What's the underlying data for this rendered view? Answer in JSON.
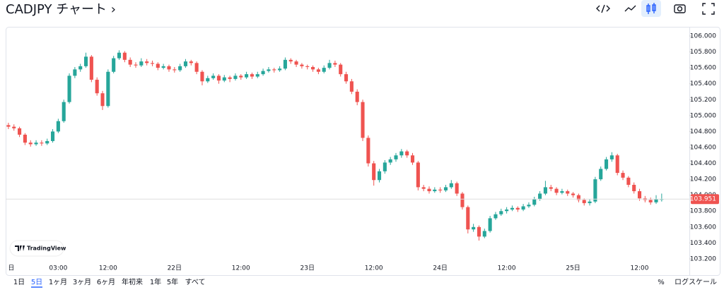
{
  "header": {
    "title": "CADJPY チャート ›"
  },
  "watermark": "TradingView",
  "ranges": [
    "1日",
    "5日",
    "1ヶ月",
    "3ヶ月",
    "6ヶ月",
    "年初来",
    "1年",
    "5年",
    "すべて"
  ],
  "selected_range": 1,
  "footer_right": [
    "%",
    "ログスケール"
  ],
  "chart_data": {
    "type": "candlestick",
    "up_color": "#26a69a",
    "down_color": "#ef5350",
    "grid": false,
    "last_price": 103.951,
    "xlim": [
      -30.5,
      93
    ],
    "xticks": [
      {
        "value": -29.5,
        "label": "日"
      },
      {
        "value": -21,
        "label": "03:00"
      },
      {
        "value": -12,
        "label": "12:00"
      },
      {
        "value": 0,
        "label": "22日"
      },
      {
        "value": 12,
        "label": "12:00"
      },
      {
        "value": 24,
        "label": "23日"
      },
      {
        "value": 36,
        "label": "12:00"
      },
      {
        "value": 48,
        "label": "24日"
      },
      {
        "value": 60,
        "label": "12:00"
      },
      {
        "value": 72,
        "label": "25日"
      },
      {
        "value": 84,
        "label": "12:00"
      }
    ],
    "ylim": [
      103.173,
      106.115
    ],
    "yticks": [
      {
        "value": 103.2,
        "label": "103.200"
      },
      {
        "value": 103.4,
        "label": "103.400"
      },
      {
        "value": 103.6,
        "label": "103.600"
      },
      {
        "value": 103.8,
        "label": "103.800"
      },
      {
        "value": 104.0,
        "label": "104.000"
      },
      {
        "value": 104.2,
        "label": "104.200"
      },
      {
        "value": 104.4,
        "label": "104.400"
      },
      {
        "value": 104.6,
        "label": "104.600"
      },
      {
        "value": 104.8,
        "label": "104.800"
      },
      {
        "value": 105.0,
        "label": "105.000"
      },
      {
        "value": 105.2,
        "label": "105.200"
      },
      {
        "value": 105.4,
        "label": "105.400"
      },
      {
        "value": 105.6,
        "label": "105.600"
      },
      {
        "value": 105.8,
        "label": "105.800"
      },
      {
        "value": 106.0,
        "label": "106.000"
      }
    ],
    "x": [
      -30,
      -29,
      -28,
      -27,
      -26,
      -25,
      -24,
      -23,
      -22,
      -21,
      -20,
      -19,
      -18,
      -17,
      -16,
      -15,
      -14,
      -13,
      -12,
      -11,
      -10,
      -9,
      -8,
      -7,
      -6,
      -5,
      -4,
      -3,
      -2,
      -1,
      0,
      1,
      2,
      3,
      4,
      5,
      6,
      7,
      8,
      9,
      10,
      11,
      12,
      13,
      14,
      15,
      16,
      17,
      18,
      19,
      20,
      21,
      22,
      23,
      24,
      25,
      26,
      27,
      28,
      29,
      30,
      31,
      32,
      33,
      34,
      35,
      36,
      37,
      38,
      39,
      40,
      41,
      42,
      43,
      44,
      45,
      46,
      47,
      48,
      49,
      50,
      51,
      52,
      53,
      54,
      55,
      56,
      57,
      58,
      59,
      60,
      61,
      62,
      63,
      64,
      65,
      66,
      67,
      68,
      69,
      70,
      71,
      72,
      73,
      74,
      75,
      76,
      77,
      78,
      79,
      80,
      81,
      82,
      83,
      84,
      85,
      86,
      87,
      88
    ],
    "ohlc": [
      [
        104.88,
        104.91,
        104.83,
        104.86
      ],
      [
        104.86,
        104.89,
        104.81,
        104.84
      ],
      [
        104.84,
        104.86,
        104.73,
        104.76
      ],
      [
        104.76,
        104.78,
        104.63,
        104.66
      ],
      [
        104.66,
        104.69,
        104.61,
        104.64
      ],
      [
        104.64,
        104.69,
        104.62,
        104.66
      ],
      [
        104.66,
        104.69,
        104.62,
        104.65
      ],
      [
        104.65,
        104.71,
        104.63,
        104.68
      ],
      [
        104.68,
        104.83,
        104.66,
        104.8
      ],
      [
        104.8,
        104.96,
        104.78,
        104.93
      ],
      [
        104.93,
        105.2,
        104.91,
        105.17
      ],
      [
        105.17,
        105.53,
        105.15,
        105.5
      ],
      [
        105.5,
        105.61,
        105.47,
        105.58
      ],
      [
        105.58,
        105.65,
        105.55,
        105.62
      ],
      [
        105.62,
        105.79,
        105.6,
        105.74
      ],
      [
        105.74,
        105.76,
        105.42,
        105.45
      ],
      [
        105.45,
        105.48,
        105.25,
        105.28
      ],
      [
        105.28,
        105.31,
        105.07,
        105.12
      ],
      [
        105.12,
        105.58,
        105.1,
        105.55
      ],
      [
        105.55,
        105.75,
        105.53,
        105.72
      ],
      [
        105.72,
        105.82,
        105.7,
        105.79
      ],
      [
        105.79,
        105.81,
        105.67,
        105.7
      ],
      [
        105.7,
        105.73,
        105.61,
        105.64
      ],
      [
        105.64,
        105.67,
        105.6,
        105.63
      ],
      [
        105.63,
        105.72,
        105.61,
        105.68
      ],
      [
        105.68,
        105.71,
        105.63,
        105.66
      ],
      [
        105.66,
        105.69,
        105.62,
        105.65
      ],
      [
        105.65,
        105.67,
        105.57,
        105.6
      ],
      [
        105.6,
        105.65,
        105.58,
        105.62
      ],
      [
        105.62,
        105.64,
        105.55,
        105.58
      ],
      [
        105.58,
        105.61,
        105.54,
        105.57
      ],
      [
        105.57,
        105.65,
        105.55,
        105.62
      ],
      [
        105.62,
        105.71,
        105.6,
        105.68
      ],
      [
        105.68,
        105.7,
        105.63,
        105.66
      ],
      [
        105.66,
        105.68,
        105.52,
        105.55
      ],
      [
        105.55,
        105.57,
        105.38,
        105.43
      ],
      [
        105.43,
        105.5,
        105.41,
        105.47
      ],
      [
        105.47,
        105.53,
        105.45,
        105.5
      ],
      [
        105.5,
        105.52,
        105.4,
        105.44
      ],
      [
        105.44,
        105.51,
        105.42,
        105.48
      ],
      [
        105.48,
        105.5,
        105.42,
        105.46
      ],
      [
        105.46,
        105.53,
        105.44,
        105.5
      ],
      [
        105.5,
        105.52,
        105.45,
        105.48
      ],
      [
        105.48,
        105.55,
        105.46,
        105.52
      ],
      [
        105.52,
        105.54,
        105.46,
        105.49
      ],
      [
        105.49,
        105.55,
        105.47,
        105.52
      ],
      [
        105.52,
        105.59,
        105.5,
        105.56
      ],
      [
        105.56,
        105.61,
        105.54,
        105.58
      ],
      [
        105.58,
        105.6,
        105.54,
        105.57
      ],
      [
        105.57,
        105.62,
        105.55,
        105.59
      ],
      [
        105.59,
        105.73,
        105.57,
        105.7
      ],
      [
        105.7,
        105.72,
        105.65,
        105.68
      ],
      [
        105.68,
        105.7,
        105.61,
        105.64
      ],
      [
        105.64,
        105.66,
        105.59,
        105.62
      ],
      [
        105.62,
        105.64,
        105.58,
        105.61
      ],
      [
        105.61,
        105.63,
        105.55,
        105.58
      ],
      [
        105.58,
        105.6,
        105.52,
        105.55
      ],
      [
        105.55,
        105.63,
        105.53,
        105.6
      ],
      [
        105.6,
        105.7,
        105.58,
        105.66
      ],
      [
        105.66,
        105.69,
        105.61,
        105.64
      ],
      [
        105.64,
        105.66,
        105.49,
        105.52
      ],
      [
        105.52,
        105.55,
        105.4,
        105.43
      ],
      [
        105.43,
        105.46,
        105.27,
        105.3
      ],
      [
        105.3,
        105.33,
        105.13,
        105.17
      ],
      [
        105.17,
        105.2,
        104.68,
        104.72
      ],
      [
        104.72,
        104.75,
        104.36,
        104.4
      ],
      [
        104.4,
        104.43,
        104.12,
        104.19
      ],
      [
        104.19,
        104.33,
        104.16,
        104.3
      ],
      [
        104.3,
        104.44,
        104.27,
        104.41
      ],
      [
        104.41,
        104.48,
        104.38,
        104.45
      ],
      [
        104.45,
        104.53,
        104.42,
        104.5
      ],
      [
        104.5,
        104.58,
        104.47,
        104.55
      ],
      [
        104.55,
        104.57,
        104.47,
        104.5
      ],
      [
        104.5,
        104.53,
        104.38,
        104.41
      ],
      [
        104.41,
        104.43,
        104.06,
        104.1
      ],
      [
        104.1,
        104.13,
        104.05,
        104.08
      ],
      [
        104.08,
        104.11,
        104.02,
        104.05
      ],
      [
        104.05,
        104.1,
        104.03,
        104.07
      ],
      [
        104.07,
        104.1,
        104.03,
        104.06
      ],
      [
        104.06,
        104.13,
        104.04,
        104.1
      ],
      [
        104.1,
        104.19,
        104.08,
        104.15
      ],
      [
        104.15,
        104.17,
        103.99,
        104.02
      ],
      [
        104.02,
        104.04,
        103.82,
        103.85
      ],
      [
        103.85,
        103.87,
        103.52,
        103.57
      ],
      [
        103.57,
        103.64,
        103.54,
        103.6
      ],
      [
        103.6,
        103.62,
        103.43,
        103.48
      ],
      [
        103.48,
        103.58,
        103.46,
        103.55
      ],
      [
        103.55,
        103.74,
        103.53,
        103.71
      ],
      [
        103.71,
        103.79,
        103.69,
        103.76
      ],
      [
        103.76,
        103.83,
        103.74,
        103.8
      ],
      [
        103.8,
        103.85,
        103.77,
        103.82
      ],
      [
        103.82,
        103.87,
        103.8,
        103.84
      ],
      [
        103.84,
        103.86,
        103.79,
        103.82
      ],
      [
        103.82,
        103.89,
        103.8,
        103.86
      ],
      [
        103.86,
        103.91,
        103.84,
        103.88
      ],
      [
        103.88,
        103.98,
        103.86,
        103.95
      ],
      [
        103.95,
        104.05,
        103.93,
        104.02
      ],
      [
        104.02,
        104.18,
        104.0,
        104.1
      ],
      [
        104.1,
        104.13,
        104.05,
        104.08
      ],
      [
        104.08,
        104.1,
        104.0,
        104.03
      ],
      [
        104.03,
        104.08,
        104.01,
        104.05
      ],
      [
        104.05,
        104.07,
        103.99,
        104.02
      ],
      [
        104.02,
        104.04,
        103.97,
        104.0
      ],
      [
        104.0,
        104.02,
        103.91,
        103.94
      ],
      [
        103.94,
        103.96,
        103.87,
        103.9
      ],
      [
        103.9,
        103.95,
        103.87,
        103.92
      ],
      [
        103.92,
        104.23,
        103.9,
        104.2
      ],
      [
        104.2,
        104.36,
        104.18,
        104.33
      ],
      [
        104.33,
        104.48,
        104.31,
        104.45
      ],
      [
        104.45,
        104.54,
        104.42,
        104.5
      ],
      [
        104.5,
        104.52,
        104.25,
        104.28
      ],
      [
        104.28,
        104.31,
        104.19,
        104.22
      ],
      [
        104.22,
        104.24,
        104.1,
        104.13
      ],
      [
        104.13,
        104.16,
        104.02,
        104.05
      ],
      [
        104.05,
        104.08,
        103.93,
        103.96
      ],
      [
        103.96,
        103.99,
        103.91,
        103.94
      ],
      [
        103.94,
        103.97,
        103.88,
        103.91
      ],
      [
        103.91,
        104.0,
        103.89,
        103.95
      ],
      [
        103.95,
        104.02,
        103.92,
        103.951
      ]
    ]
  }
}
